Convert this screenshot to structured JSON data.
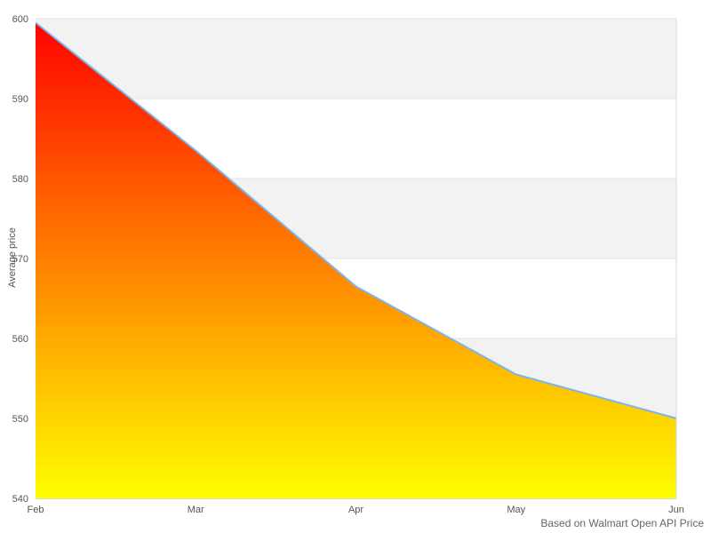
{
  "chart_data": {
    "type": "area",
    "title": "",
    "categories": [
      "Feb",
      "Mar",
      "Apr",
      "May",
      "Jun"
    ],
    "series": [
      {
        "name": "Average price",
        "values": [
          599.5,
          583.5,
          566.5,
          555.5,
          550
        ]
      }
    ],
    "xlabel": "",
    "ylabel": "Average price",
    "ylim": [
      540,
      600
    ],
    "yticks": [
      540,
      550,
      560,
      570,
      580,
      590,
      600
    ],
    "grid": true,
    "alternating_bands": true,
    "legend": "none",
    "caption": "Based on Walmart Open API Price",
    "colors": {
      "area_gradient_top": "#ff0000",
      "area_gradient_bottom": "#ffff00",
      "line": "#7cb5ec",
      "band_fill": "#f2f2f2",
      "gridline": "#e6e6e6",
      "axis_line": "#d8d8d8",
      "tick_label": "#555555",
      "caption_text": "#666666",
      "background": "#ffffff"
    }
  }
}
